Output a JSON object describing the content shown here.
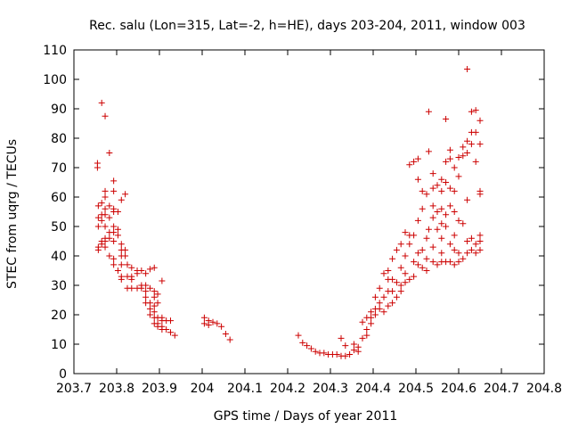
{
  "chart_data": {
    "type": "scatter",
    "title": "Rec. salu (Lon=315, Lat=-2, h=HE), days 203-204, 2011, window 003",
    "xlabel": "GPS time / Days of year 2011",
    "ylabel": "STEC from uqrg / TECUs",
    "xlim": [
      203.7,
      204.8
    ],
    "ylim": [
      0,
      110
    ],
    "xticks": [
      203.7,
      203.8,
      203.9,
      204,
      204.1,
      204.2,
      204.3,
      204.4,
      204.5,
      204.6,
      204.7,
      204.8
    ],
    "xtick_labels": [
      "203.7",
      "203.8",
      "203.9",
      "204",
      "204.1",
      "204.2",
      "204.3",
      "204.4",
      "204.5",
      "204.6",
      "204.7",
      "204.8"
    ],
    "yticks": [
      0,
      10,
      20,
      30,
      40,
      50,
      60,
      70,
      80,
      90,
      100,
      110
    ],
    "ytick_labels": [
      "0",
      "10",
      "20",
      "30",
      "40",
      "50",
      "60",
      "70",
      "80",
      "90",
      "100",
      "110"
    ],
    "grid": false,
    "marker": "+",
    "color": "#cc0000",
    "points": [
      [
        203.755,
        70
      ],
      [
        203.755,
        71.5
      ],
      [
        203.757,
        57
      ],
      [
        203.757,
        53
      ],
      [
        203.757,
        50
      ],
      [
        203.757,
        43
      ],
      [
        203.757,
        42
      ],
      [
        203.765,
        92
      ],
      [
        203.765,
        58
      ],
      [
        203.765,
        54
      ],
      [
        203.765,
        52
      ],
      [
        203.765,
        45
      ],
      [
        203.765,
        44
      ],
      [
        203.773,
        87.5
      ],
      [
        203.773,
        62
      ],
      [
        203.773,
        60
      ],
      [
        203.773,
        56
      ],
      [
        203.773,
        54
      ],
      [
        203.773,
        50
      ],
      [
        203.773,
        46
      ],
      [
        203.773,
        45
      ],
      [
        203.773,
        43
      ],
      [
        203.783,
        75
      ],
      [
        203.783,
        57
      ],
      [
        203.783,
        53
      ],
      [
        203.783,
        48
      ],
      [
        203.783,
        46
      ],
      [
        203.783,
        40
      ],
      [
        203.793,
        65.5
      ],
      [
        203.793,
        62
      ],
      [
        203.793,
        56
      ],
      [
        203.793,
        55
      ],
      [
        203.793,
        50
      ],
      [
        203.793,
        48
      ],
      [
        203.793,
        45
      ],
      [
        203.793,
        39
      ],
      [
        203.793,
        37
      ],
      [
        203.803,
        55
      ],
      [
        203.803,
        49
      ],
      [
        203.803,
        47
      ],
      [
        203.803,
        35
      ],
      [
        203.811,
        59
      ],
      [
        203.811,
        44
      ],
      [
        203.811,
        42
      ],
      [
        203.811,
        40
      ],
      [
        203.811,
        37
      ],
      [
        203.811,
        33
      ],
      [
        203.811,
        32
      ],
      [
        203.82,
        61
      ],
      [
        203.82,
        42
      ],
      [
        203.82,
        40
      ],
      [
        203.825,
        37
      ],
      [
        203.825,
        33
      ],
      [
        203.825,
        29
      ],
      [
        203.835,
        36
      ],
      [
        203.835,
        33
      ],
      [
        203.835,
        32
      ],
      [
        203.835,
        29
      ],
      [
        203.848,
        35
      ],
      [
        203.848,
        34
      ],
      [
        203.848,
        29
      ],
      [
        203.858,
        35
      ],
      [
        203.858,
        30
      ],
      [
        203.858,
        29
      ],
      [
        203.868,
        34
      ],
      [
        203.868,
        30
      ],
      [
        203.868,
        28
      ],
      [
        203.868,
        26
      ],
      [
        203.868,
        24
      ],
      [
        203.878,
        35.5
      ],
      [
        203.878,
        29
      ],
      [
        203.878,
        24
      ],
      [
        203.878,
        22
      ],
      [
        203.878,
        20
      ],
      [
        203.888,
        36
      ],
      [
        203.888,
        28
      ],
      [
        203.888,
        26
      ],
      [
        203.888,
        23
      ],
      [
        203.888,
        21
      ],
      [
        203.888,
        19
      ],
      [
        203.888,
        17
      ],
      [
        203.896,
        27
      ],
      [
        203.896,
        24
      ],
      [
        203.896,
        19
      ],
      [
        203.896,
        17
      ],
      [
        203.896,
        16
      ],
      [
        203.906,
        31.5
      ],
      [
        203.906,
        19
      ],
      [
        203.906,
        18
      ],
      [
        203.906,
        16
      ],
      [
        203.906,
        15
      ],
      [
        203.916,
        18
      ],
      [
        203.916,
        15
      ],
      [
        203.926,
        18
      ],
      [
        203.926,
        14
      ],
      [
        203.936,
        13
      ],
      [
        204.005,
        19
      ],
      [
        204.005,
        17
      ],
      [
        204.015,
        18
      ],
      [
        204.015,
        16.5
      ],
      [
        204.025,
        17.5
      ],
      [
        204.035,
        17
      ],
      [
        204.045,
        16
      ],
      [
        204.055,
        13.5
      ],
      [
        204.065,
        11.5
      ],
      [
        204.225,
        13
      ],
      [
        204.235,
        10.5
      ],
      [
        204.245,
        9.5
      ],
      [
        204.255,
        8.5
      ],
      [
        204.265,
        7.5
      ],
      [
        204.275,
        7
      ],
      [
        204.285,
        7
      ],
      [
        204.295,
        6.5
      ],
      [
        204.305,
        6.5
      ],
      [
        204.315,
        6.5
      ],
      [
        204.325,
        12
      ],
      [
        204.325,
        6
      ],
      [
        204.335,
        9.5
      ],
      [
        204.335,
        6
      ],
      [
        204.345,
        6.5
      ],
      [
        204.355,
        10
      ],
      [
        204.355,
        8
      ],
      [
        204.365,
        9
      ],
      [
        204.365,
        7.5
      ],
      [
        204.375,
        17.5
      ],
      [
        204.375,
        12
      ],
      [
        204.385,
        19
      ],
      [
        204.385,
        15
      ],
      [
        204.385,
        13
      ],
      [
        204.395,
        21
      ],
      [
        204.395,
        19
      ],
      [
        204.395,
        17
      ],
      [
        204.405,
        26
      ],
      [
        204.405,
        22
      ],
      [
        204.405,
        20
      ],
      [
        204.415,
        29
      ],
      [
        204.415,
        24
      ],
      [
        204.415,
        22
      ],
      [
        204.425,
        34
      ],
      [
        204.425,
        26
      ],
      [
        204.425,
        21
      ],
      [
        204.435,
        35
      ],
      [
        204.435,
        32
      ],
      [
        204.435,
        28
      ],
      [
        204.435,
        23
      ],
      [
        204.445,
        39
      ],
      [
        204.445,
        32
      ],
      [
        204.445,
        28
      ],
      [
        204.445,
        24
      ],
      [
        204.455,
        42
      ],
      [
        204.455,
        31
      ],
      [
        204.455,
        26
      ],
      [
        204.465,
        44
      ],
      [
        204.465,
        36
      ],
      [
        204.465,
        30
      ],
      [
        204.465,
        28
      ],
      [
        204.475,
        48
      ],
      [
        204.475,
        40
      ],
      [
        204.475,
        34
      ],
      [
        204.475,
        31
      ],
      [
        204.485,
        71
      ],
      [
        204.485,
        47
      ],
      [
        204.485,
        44
      ],
      [
        204.485,
        32
      ],
      [
        204.495,
        72
      ],
      [
        204.495,
        47
      ],
      [
        204.495,
        38
      ],
      [
        204.495,
        33
      ],
      [
        204.505,
        73
      ],
      [
        204.505,
        66
      ],
      [
        204.505,
        52
      ],
      [
        204.505,
        41
      ],
      [
        204.505,
        37
      ],
      [
        204.515,
        62
      ],
      [
        204.515,
        56
      ],
      [
        204.515,
        42
      ],
      [
        204.515,
        36
      ],
      [
        204.525,
        61
      ],
      [
        204.525,
        46
      ],
      [
        204.525,
        39
      ],
      [
        204.525,
        35
      ],
      [
        204.53,
        89
      ],
      [
        204.53,
        75.5
      ],
      [
        204.53,
        49
      ],
      [
        204.54,
        68
      ],
      [
        204.54,
        63
      ],
      [
        204.54,
        57
      ],
      [
        204.54,
        53
      ],
      [
        204.54,
        43
      ],
      [
        204.54,
        38
      ],
      [
        204.55,
        64
      ],
      [
        204.55,
        55
      ],
      [
        204.55,
        49
      ],
      [
        204.55,
        37
      ],
      [
        204.56,
        66
      ],
      [
        204.56,
        62
      ],
      [
        204.56,
        56
      ],
      [
        204.56,
        51
      ],
      [
        204.56,
        46
      ],
      [
        204.56,
        41
      ],
      [
        204.56,
        38
      ],
      [
        204.57,
        86.5
      ],
      [
        204.57,
        72
      ],
      [
        204.57,
        65
      ],
      [
        204.57,
        54
      ],
      [
        204.57,
        50
      ],
      [
        204.57,
        38
      ],
      [
        204.58,
        73
      ],
      [
        204.58,
        76
      ],
      [
        204.58,
        63
      ],
      [
        204.58,
        57
      ],
      [
        204.58,
        44
      ],
      [
        204.58,
        38
      ],
      [
        204.59,
        70
      ],
      [
        204.59,
        62
      ],
      [
        204.59,
        55
      ],
      [
        204.59,
        47
      ],
      [
        204.59,
        42
      ],
      [
        204.59,
        37
      ],
      [
        204.6,
        73.5
      ],
      [
        204.6,
        67
      ],
      [
        204.6,
        52
      ],
      [
        204.6,
        41
      ],
      [
        204.6,
        38
      ],
      [
        204.61,
        77
      ],
      [
        204.61,
        74
      ],
      [
        204.61,
        51
      ],
      [
        204.61,
        39
      ],
      [
        204.62,
        103.5
      ],
      [
        204.62,
        79
      ],
      [
        204.62,
        75
      ],
      [
        204.62,
        59
      ],
      [
        204.62,
        45
      ],
      [
        204.62,
        41
      ],
      [
        204.63,
        89
      ],
      [
        204.63,
        82
      ],
      [
        204.63,
        78
      ],
      [
        204.63,
        46
      ],
      [
        204.63,
        42
      ],
      [
        204.64,
        89.5
      ],
      [
        204.64,
        82
      ],
      [
        204.64,
        72
      ],
      [
        204.64,
        44
      ],
      [
        204.64,
        41
      ],
      [
        204.65,
        86
      ],
      [
        204.65,
        78
      ],
      [
        204.65,
        62
      ],
      [
        204.65,
        61
      ],
      [
        204.65,
        47
      ],
      [
        204.65,
        45
      ],
      [
        204.65,
        42
      ]
    ]
  }
}
